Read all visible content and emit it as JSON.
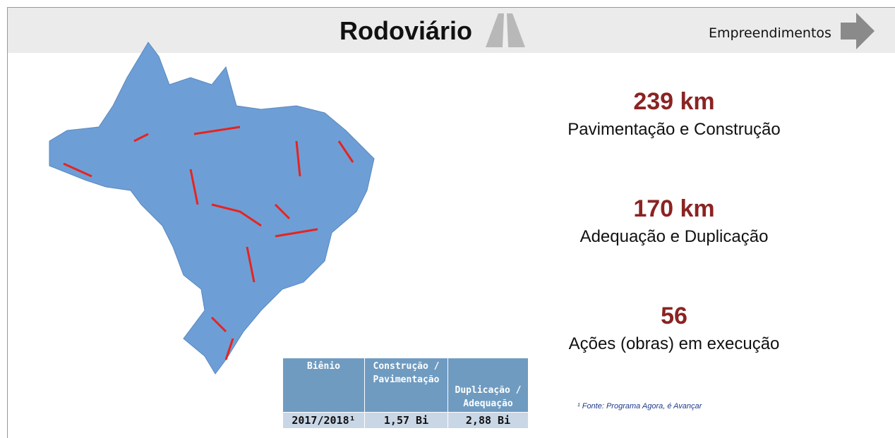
{
  "header": {
    "title": "Rodoviário",
    "link": "Empreendimentos"
  },
  "stats": [
    {
      "value": "239 km",
      "label": "Pavimentação e Construção"
    },
    {
      "value": "170 km",
      "label": "Adequação e Duplicação"
    },
    {
      "value": "56",
      "label": "Ações (obras) em execução"
    }
  ],
  "table": {
    "headers": [
      "Biênio",
      "Construção / Pavimentação",
      "Duplicação / Adequação"
    ],
    "rows": [
      [
        "2017/2018¹",
        "1,57 Bi",
        "2,88 Bi"
      ]
    ]
  },
  "footnote": "¹ Fonte: Programa Agora, é Avançar"
}
